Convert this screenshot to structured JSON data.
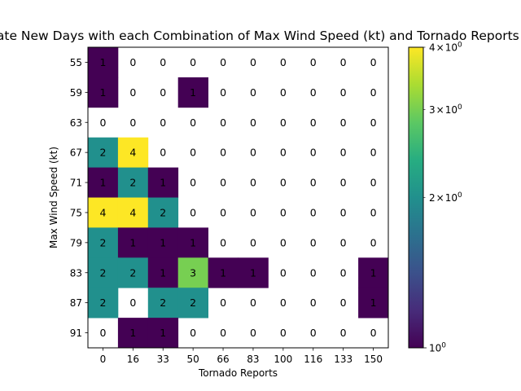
{
  "chart_data": {
    "type": "heatmap",
    "title": "Moderate New Days with each Combination of Max Wind Speed (kt) and Tornado Reports",
    "xlabel": "Tornado Reports",
    "ylabel": "Max Wind Speed (kt)",
    "x_categories": [
      "0",
      "16",
      "33",
      "50",
      "66",
      "83",
      "100",
      "116",
      "133",
      "150"
    ],
    "y_categories": [
      "55",
      "59",
      "63",
      "67",
      "71",
      "75",
      "79",
      "83",
      "87",
      "91"
    ],
    "values": [
      [
        1,
        0,
        0,
        0,
        0,
        0,
        0,
        0,
        0,
        0
      ],
      [
        1,
        0,
        0,
        1,
        0,
        0,
        0,
        0,
        0,
        0
      ],
      [
        0,
        0,
        0,
        0,
        0,
        0,
        0,
        0,
        0,
        0
      ],
      [
        2,
        4,
        0,
        0,
        0,
        0,
        0,
        0,
        0,
        0
      ],
      [
        1,
        2,
        1,
        0,
        0,
        0,
        0,
        0,
        0,
        0
      ],
      [
        4,
        4,
        2,
        0,
        0,
        0,
        0,
        0,
        0,
        0
      ],
      [
        2,
        1,
        1,
        1,
        0,
        0,
        0,
        0,
        0,
        0
      ],
      [
        2,
        2,
        1,
        3,
        1,
        1,
        0,
        0,
        0,
        1
      ],
      [
        2,
        0,
        2,
        2,
        0,
        0,
        0,
        0,
        0,
        1
      ],
      [
        0,
        1,
        1,
        0,
        0,
        0,
        0,
        0,
        0,
        0
      ]
    ],
    "colorbar": {
      "scale": "log",
      "range": [
        1,
        4
      ],
      "colormap": "viridis",
      "major_ticks": [
        {
          "value": 1,
          "base": "10",
          "exp": "0"
        }
      ],
      "minor_ticks": [
        {
          "value": 2,
          "mant": "2",
          "base": "10",
          "exp": "0"
        },
        {
          "value": 3,
          "mant": "3",
          "base": "10",
          "exp": "0"
        },
        {
          "value": 4,
          "mant": "4",
          "base": "10",
          "exp": "0"
        }
      ]
    },
    "zero_cells": "blank (white)",
    "grid": false
  }
}
